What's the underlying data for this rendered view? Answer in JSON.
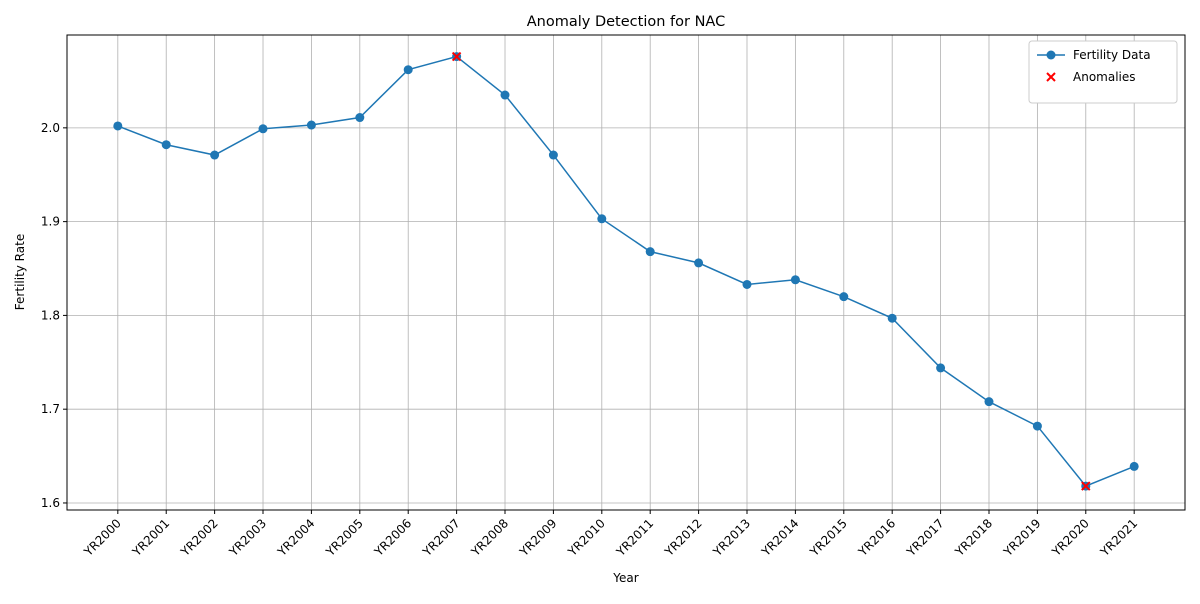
{
  "chart_data": {
    "type": "line",
    "title": "Anomaly Detection for NAC",
    "xlabel": "Year",
    "ylabel": "Fertility Rate",
    "categories": [
      "YR2000",
      "YR2001",
      "YR2002",
      "YR2003",
      "YR2004",
      "YR2005",
      "YR2006",
      "YR2007",
      "YR2008",
      "YR2009",
      "YR2010",
      "YR2011",
      "YR2012",
      "YR2013",
      "YR2014",
      "YR2015",
      "YR2016",
      "YR2017",
      "YR2018",
      "YR2019",
      "YR2020",
      "YR2021"
    ],
    "series": [
      {
        "name": "Fertility Data",
        "color": "#1f77b4",
        "marker": "o",
        "values": [
          2.002,
          1.982,
          1.971,
          1.999,
          2.003,
          2.011,
          2.062,
          2.076,
          2.035,
          1.971,
          1.903,
          1.868,
          1.856,
          1.833,
          1.838,
          1.82,
          1.797,
          1.744,
          1.708,
          1.682,
          1.618,
          1.639
        ]
      },
      {
        "name": "Anomalies",
        "color": "#ff0000",
        "marker": "x",
        "values": [
          null,
          null,
          null,
          null,
          null,
          null,
          null,
          2.076,
          null,
          null,
          null,
          null,
          null,
          null,
          null,
          null,
          null,
          null,
          null,
          null,
          1.618,
          null
        ]
      }
    ],
    "ylim": [
      1.5925,
      2.099
    ],
    "yticks": [
      1.6,
      1.7,
      1.8,
      1.9,
      {
        "value": 2.0,
        "label": "2.0"
      }
    ],
    "grid": true,
    "legend": "upper right"
  }
}
